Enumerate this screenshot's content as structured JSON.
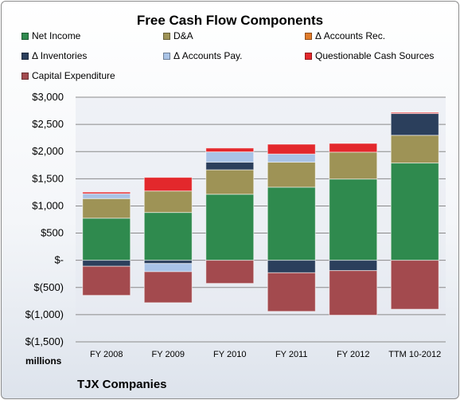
{
  "chart_data": {
    "type": "bar",
    "stacked": true,
    "title": "Free Cash Flow Components",
    "ylabel": "",
    "units_label": "millions",
    "footer": "TJX Companies",
    "categories": [
      "FY 2008",
      "FY 2009",
      "FY 2010",
      "FY 2011",
      "FY 2012",
      "TTM 10-2012"
    ],
    "ylim": [
      -1500,
      3000
    ],
    "y_ticks": [
      3000,
      2500,
      2000,
      1500,
      1000,
      500,
      0,
      -500,
      -1000,
      -1500
    ],
    "y_tick_labels": [
      "$3,000",
      "$2,500",
      "$2,000",
      "$1,500",
      "$1,000",
      "$500",
      "$-",
      "$(500)",
      "$(1,000)",
      "$(1,500)"
    ],
    "grid": true,
    "legend_position": "top",
    "series": [
      {
        "name": "Net Income",
        "color": "#2f8a4e",
        "values": [
          775,
          880,
          1215,
          1345,
          1495,
          1790
        ]
      },
      {
        "name": "D&A",
        "color": "#9e9356",
        "values": [
          360,
          395,
          450,
          460,
          495,
          510
        ]
      },
      {
        "name": "Δ Accounts Rec.",
        "color": "#e07b2a",
        "values": [
          0,
          0,
          0,
          0,
          0,
          0
        ]
      },
      {
        "name": "Δ Inventories",
        "color": "#2b3f5c",
        "values": [
          -110,
          -60,
          140,
          -230,
          -190,
          400
        ]
      },
      {
        "name": "Δ Accounts Pay.",
        "color": "#a9c3e6",
        "values": [
          90,
          -150,
          190,
          150,
          0,
          0
        ]
      },
      {
        "name": "Questionable Cash Sources",
        "color": "#e3282c",
        "values": [
          30,
          250,
          70,
          180,
          160,
          20
        ]
      },
      {
        "name": "Capital Expenditure",
        "color": "#a34a4e",
        "values": [
          -535,
          -570,
          -425,
          -710,
          -820,
          -900
        ]
      }
    ]
  }
}
